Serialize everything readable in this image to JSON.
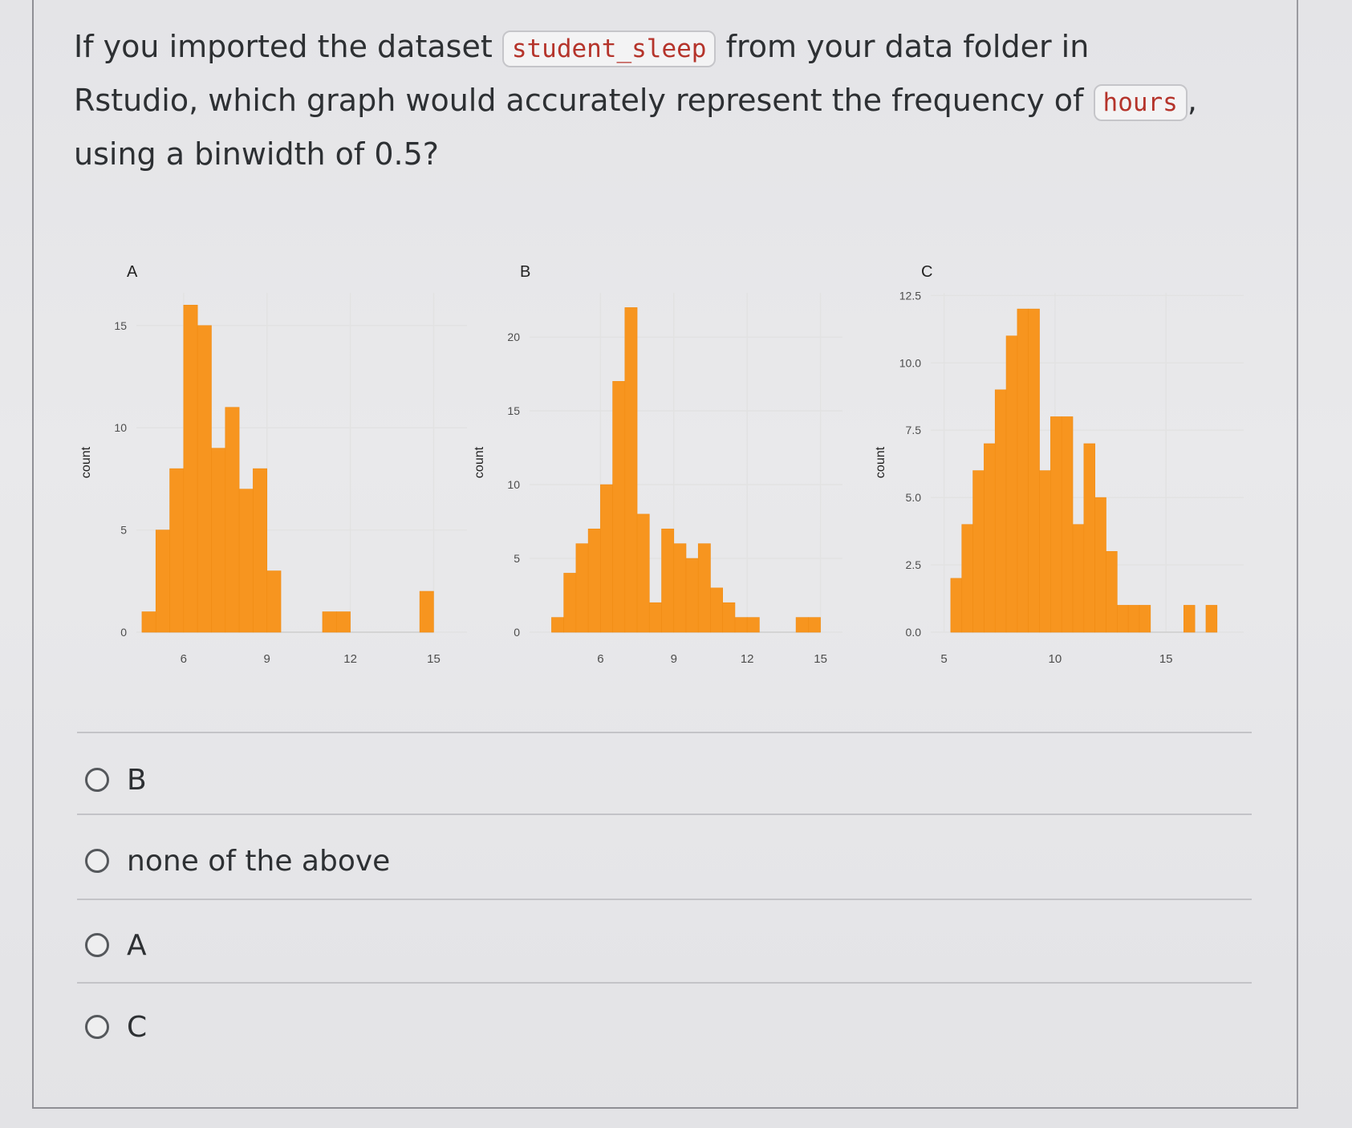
{
  "question": {
    "text_part1": "If you imported the dataset",
    "code_dataset": "student_sleep",
    "text_part2": "from your data folder in Rstudio, which graph would accurately represent the frequency of",
    "code_variable": "hours",
    "text_part3": ", using a binwidth of 0.5?"
  },
  "colors": {
    "bar_fill": "#f7951f",
    "bar_stroke": "#f08c14",
    "grid": "#e2e2e2",
    "code_text": "#b5342b"
  },
  "chart_data": [
    {
      "type": "bar",
      "title": "A",
      "xlabel": "",
      "ylabel": "count",
      "bin_edges": [
        4.5,
        5.0,
        5.5,
        6.0,
        6.5,
        7.0,
        7.5,
        8.0,
        8.5,
        9.0,
        9.5,
        10.0,
        10.5,
        11.0,
        11.5,
        12.0,
        12.5,
        13.0,
        13.5,
        14.0,
        14.5,
        15.0
      ],
      "values": [
        1,
        5,
        8,
        16,
        15,
        9,
        11,
        7,
        8,
        3,
        0,
        0,
        0,
        1,
        1,
        0,
        0,
        0,
        0,
        0,
        2
      ],
      "xticks": [
        6,
        9,
        12,
        15
      ],
      "yticks": [
        0,
        5,
        10,
        15
      ],
      "xlim": [
        4.3,
        16.2
      ],
      "ylim": [
        0,
        16.6
      ],
      "grid": true
    },
    {
      "type": "bar",
      "title": "B",
      "xlabel": "",
      "ylabel": "count",
      "bin_edges": [
        4.0,
        4.5,
        5.0,
        5.5,
        6.0,
        6.5,
        7.0,
        7.5,
        8.0,
        8.5,
        9.0,
        9.5,
        10.0,
        10.5,
        11.0,
        11.5,
        12.0,
        12.5,
        13.0,
        13.5,
        14.0,
        14.5,
        15.0
      ],
      "values": [
        1,
        4,
        6,
        7,
        10,
        17,
        22,
        8,
        2,
        7,
        6,
        5,
        6,
        3,
        2,
        1,
        1,
        0,
        0,
        0,
        1,
        1
      ],
      "xticks": [
        6,
        9,
        12,
        15
      ],
      "yticks": [
        0,
        5,
        10,
        15,
        20
      ],
      "xlim": [
        3.1,
        15.9
      ],
      "ylim": [
        0,
        23
      ],
      "grid": true
    },
    {
      "type": "bar",
      "title": "C",
      "xlabel": "",
      "ylabel": "count",
      "bin_edges": [
        5.3,
        5.8,
        6.3,
        6.8,
        7.3,
        7.8,
        8.3,
        8.8,
        9.3,
        9.8,
        10.3,
        10.8,
        11.3,
        11.8,
        12.3,
        12.8,
        13.3,
        13.8,
        14.3,
        14.8,
        15.3,
        15.8,
        16.3,
        16.8,
        17.3
      ],
      "values": [
        2,
        4,
        6,
        7,
        9,
        11,
        12,
        12,
        6,
        8,
        8,
        4,
        7,
        5,
        3,
        1,
        1,
        1,
        0,
        0,
        0,
        1,
        0,
        1
      ],
      "xticks": [
        5,
        10,
        15
      ],
      "yticks": [
        "0.0",
        "2.5",
        "5.0",
        "7.5",
        "10.0",
        "12.5"
      ],
      "xlim": [
        4.4,
        18.5
      ],
      "ylim": [
        0,
        12.6
      ],
      "grid": true
    }
  ],
  "options": [
    {
      "label": "B"
    },
    {
      "label": "none of the above"
    },
    {
      "label": "A"
    },
    {
      "label": "C"
    }
  ]
}
